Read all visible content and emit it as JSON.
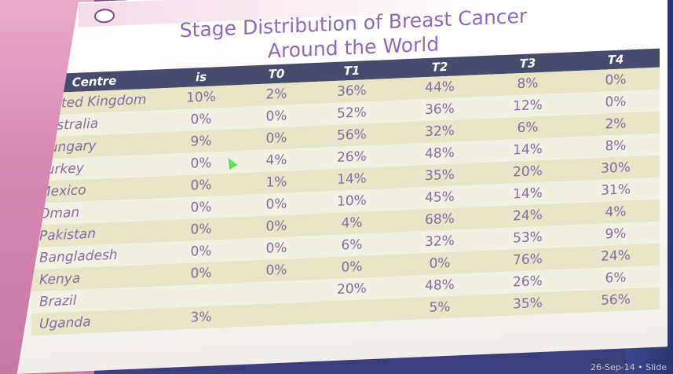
{
  "slide": {
    "title_line1": "Stage Distribution of Breast Cancer",
    "title_line2": "Around the World",
    "footer": "26-Sep-14 • Slide"
  },
  "table": {
    "headers": [
      "Centre",
      "is",
      "T0",
      "T1",
      "T2",
      "T3",
      "T4"
    ],
    "rows": [
      {
        "centre": "United Kingdom",
        "is": "10%",
        "t0": "2%",
        "t1": "36%",
        "t2": "44%",
        "t3": "8%",
        "t4": "0%"
      },
      {
        "centre": "Australia",
        "is": "0%",
        "t0": "0%",
        "t1": "52%",
        "t2": "36%",
        "t3": "12%",
        "t4": "0%"
      },
      {
        "centre": "Hungary",
        "is": "9%",
        "t0": "0%",
        "t1": "56%",
        "t2": "32%",
        "t3": "6%",
        "t4": "2%"
      },
      {
        "centre": "Turkey",
        "is": "0%",
        "t0": "4%",
        "t1": "26%",
        "t2": "48%",
        "t3": "14%",
        "t4": "8%"
      },
      {
        "centre": "Mexico",
        "is": "0%",
        "t0": "1%",
        "t1": "14%",
        "t2": "35%",
        "t3": "20%",
        "t4": "30%"
      },
      {
        "centre": "Oman",
        "is": "0%",
        "t0": "0%",
        "t1": "10%",
        "t2": "45%",
        "t3": "14%",
        "t4": "31%"
      },
      {
        "centre": "Pakistan",
        "is": "0%",
        "t0": "0%",
        "t1": "4%",
        "t2": "68%",
        "t3": "24%",
        "t4": "4%"
      },
      {
        "centre": "Bangladesh",
        "is": "0%",
        "t0": "0%",
        "t1": "6%",
        "t2": "32%",
        "t3": "53%",
        "t4": "9%"
      },
      {
        "centre": "Kenya",
        "is": "0%",
        "t0": "0%",
        "t1": "0%",
        "t2": "0%",
        "t3": "76%",
        "t4": "24%"
      },
      {
        "centre": "Brazil",
        "is": "",
        "t0": "",
        "t1": "20%",
        "t2": "48%",
        "t3": "26%",
        "t4": "6%"
      },
      {
        "centre": "Uganda",
        "is": "3%",
        "t0": "",
        "t1": "",
        "t2": "5%",
        "t3": "35%",
        "t4": "56%"
      }
    ]
  }
}
